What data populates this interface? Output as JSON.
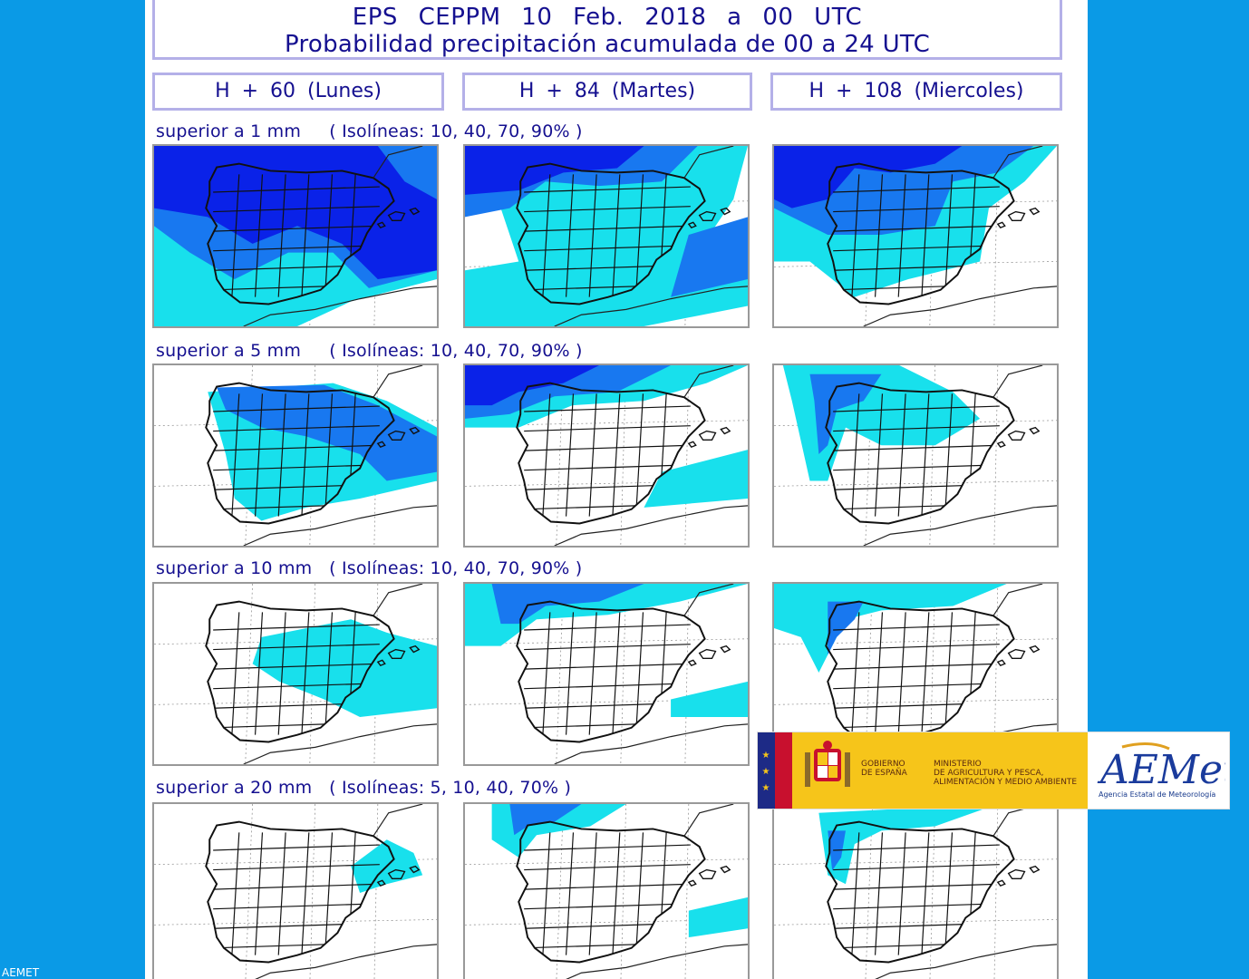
{
  "header": {
    "line1": "EPS   CEPPM    10 Feb. 2018   a    00 UTC",
    "line2": "Probabilidad precipitación acumulada de 00 a 24 UTC"
  },
  "columns": [
    "H + 60   (Lunes)",
    "H + 84   (Martes)",
    "H + 108   (Miercoles)"
  ],
  "rows": [
    {
      "label": "superior a 1 mm     ( Isolíneas: 10, 40, 70, 90% )"
    },
    {
      "label": "superior a 5 mm     ( Isolíneas: 10, 40, 70, 90% )"
    },
    {
      "label": "superior a 10 mm   ( Isolíneas: 10, 40, 70, 90% )"
    },
    {
      "label": "superior a 20 mm   ( Isolíneas: 5, 10, 40, 70% )"
    }
  ],
  "colors": {
    "light": "#18e0ec",
    "mid": "#1878f0",
    "dark": "#0a22e8",
    "background": "#0a9ae6",
    "title": "#151090"
  },
  "maps": [
    {
      "row": 1,
      "col": 1,
      "coverage": [
        "dark",
        "mid",
        "light"
      ]
    },
    {
      "row": 1,
      "col": 2,
      "coverage": [
        "dark",
        "mid",
        "light"
      ]
    },
    {
      "row": 1,
      "col": 3,
      "coverage": [
        "dark",
        "mid",
        "light"
      ]
    },
    {
      "row": 2,
      "col": 1,
      "coverage": [
        "mid",
        "light"
      ]
    },
    {
      "row": 2,
      "col": 2,
      "coverage": [
        "dark",
        "mid",
        "light"
      ]
    },
    {
      "row": 2,
      "col": 3,
      "coverage": [
        "mid",
        "light"
      ]
    },
    {
      "row": 3,
      "col": 1,
      "coverage": [
        "light"
      ]
    },
    {
      "row": 3,
      "col": 2,
      "coverage": [
        "mid",
        "light"
      ]
    },
    {
      "row": 3,
      "col": 3,
      "coverage": [
        "mid",
        "light"
      ]
    },
    {
      "row": 4,
      "col": 1,
      "coverage": [
        "light"
      ]
    },
    {
      "row": 4,
      "col": 2,
      "coverage": [
        "mid",
        "light"
      ]
    },
    {
      "row": 4,
      "col": 3,
      "coverage": [
        "mid",
        "light"
      ]
    }
  ],
  "logos": {
    "gobierno": "GOBIERNO\nDE ESPAÑA",
    "ministerio": "MINISTERIO\nDE AGRICULTURA Y PESCA,\nALIMENTACIÓN Y MEDIO AMBIENTE",
    "aemet_wordmark": "AEMet",
    "aemet_subtitle": "Agencia Estatal de Meteorología"
  },
  "footer": "AEMET"
}
